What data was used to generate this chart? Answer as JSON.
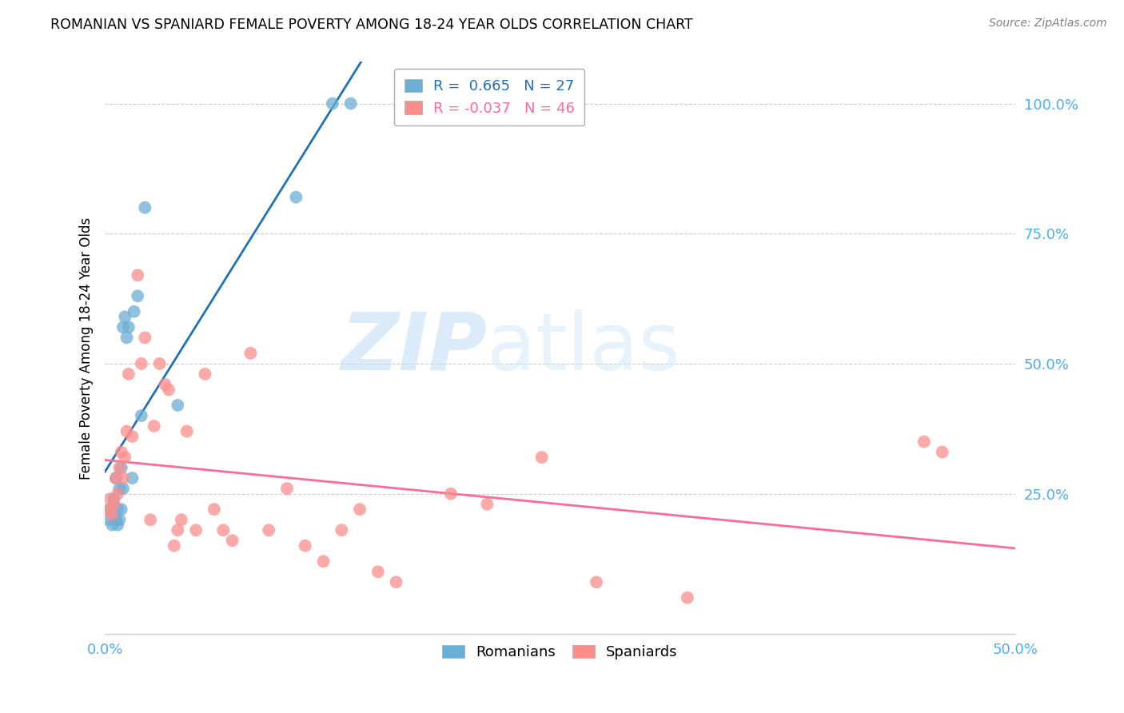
{
  "title": "ROMANIAN VS SPANIARD FEMALE POVERTY AMONG 18-24 YEAR OLDS CORRELATION CHART",
  "source": "Source: ZipAtlas.com",
  "ylabel": "Female Poverty Among 18-24 Year Olds",
  "xlim": [
    0.0,
    0.5
  ],
  "ylim": [
    -0.02,
    1.08
  ],
  "xticks": [
    0.0,
    0.05,
    0.1,
    0.15,
    0.2,
    0.25,
    0.3,
    0.35,
    0.4,
    0.45,
    0.5
  ],
  "xticklabels": [
    "0.0%",
    "",
    "",
    "",
    "",
    "",
    "",
    "",
    "",
    "",
    "50.0%"
  ],
  "yticks": [
    0.0,
    0.25,
    0.5,
    0.75,
    1.0
  ],
  "yticklabels": [
    "",
    "25.0%",
    "50.0%",
    "75.0%",
    "100.0%"
  ],
  "romanian_color": "#6baed6",
  "spaniard_color": "#fc8d8d",
  "regression_romanian_color": "#2171b5",
  "regression_spaniard_color": "#fb6a9a",
  "legend_blue_color": "#2171b5",
  "legend_pink_color": "#fb6a9a",
  "R_romanian": 0.665,
  "N_romanian": 27,
  "R_spaniard": -0.037,
  "N_spaniard": 46,
  "watermark_zip": "ZIP",
  "watermark_atlas": "atlas",
  "romanians_x": [
    0.002,
    0.003,
    0.004,
    0.005,
    0.005,
    0.006,
    0.006,
    0.007,
    0.007,
    0.008,
    0.008,
    0.009,
    0.009,
    0.01,
    0.01,
    0.011,
    0.012,
    0.013,
    0.015,
    0.016,
    0.018,
    0.02,
    0.022,
    0.04,
    0.105,
    0.125,
    0.135
  ],
  "romanians_y": [
    0.2,
    0.22,
    0.19,
    0.21,
    0.24,
    0.2,
    0.28,
    0.22,
    0.19,
    0.2,
    0.26,
    0.22,
    0.3,
    0.26,
    0.57,
    0.59,
    0.55,
    0.57,
    0.28,
    0.6,
    0.63,
    0.4,
    0.8,
    0.42,
    0.82,
    1.0,
    1.0
  ],
  "spaniards_x": [
    0.002,
    0.003,
    0.004,
    0.005,
    0.006,
    0.007,
    0.008,
    0.009,
    0.01,
    0.011,
    0.012,
    0.013,
    0.015,
    0.018,
    0.02,
    0.022,
    0.025,
    0.027,
    0.03,
    0.033,
    0.035,
    0.038,
    0.04,
    0.042,
    0.045,
    0.05,
    0.055,
    0.06,
    0.065,
    0.07,
    0.08,
    0.09,
    0.1,
    0.11,
    0.12,
    0.13,
    0.14,
    0.15,
    0.16,
    0.19,
    0.21,
    0.24,
    0.27,
    0.32,
    0.45,
    0.46
  ],
  "spaniards_y": [
    0.22,
    0.24,
    0.21,
    0.23,
    0.28,
    0.25,
    0.3,
    0.33,
    0.28,
    0.32,
    0.37,
    0.48,
    0.36,
    0.67,
    0.5,
    0.55,
    0.2,
    0.38,
    0.5,
    0.46,
    0.45,
    0.15,
    0.18,
    0.2,
    0.37,
    0.18,
    0.48,
    0.22,
    0.18,
    0.16,
    0.52,
    0.18,
    0.26,
    0.15,
    0.12,
    0.18,
    0.22,
    0.1,
    0.08,
    0.25,
    0.23,
    0.32,
    0.08,
    0.05,
    0.35,
    0.33
  ],
  "grid_color": "#cccccc",
  "grid_linestyle": "--",
  "spine_color": "#cccccc"
}
